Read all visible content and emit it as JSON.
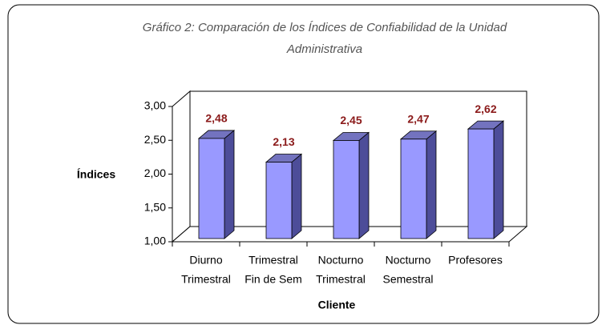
{
  "chart_data": {
    "type": "bar",
    "title": [
      "Gráfico 2: Comparación de los Índices de  Confiabilidad de la Unidad",
      "Administrativa"
    ],
    "y_label": "Índices",
    "x_label": "Cliente",
    "categories": [
      [
        "Diurno",
        "Trimestral"
      ],
      [
        "Trimestral",
        "Fin de Sem"
      ],
      [
        "Nocturno",
        "Trimestral"
      ],
      [
        "Nocturno",
        "Semestral"
      ],
      [
        "Profesores"
      ]
    ],
    "values": [
      2.48,
      2.13,
      2.45,
      2.47,
      2.62
    ],
    "value_labels": [
      "2,48",
      "2,13",
      "2,45",
      "2,47",
      "2,62"
    ],
    "color": "#9999ff",
    "ylim": [
      1,
      3
    ],
    "yticks": [
      {
        "value": 1,
        "label": "1,00"
      },
      {
        "value": 1.5,
        "label": "1,50"
      },
      {
        "value": 2,
        "label": "2,00"
      },
      {
        "value": 2.5,
        "label": "2,50"
      },
      {
        "value": 3,
        "label": "3,00"
      }
    ]
  }
}
